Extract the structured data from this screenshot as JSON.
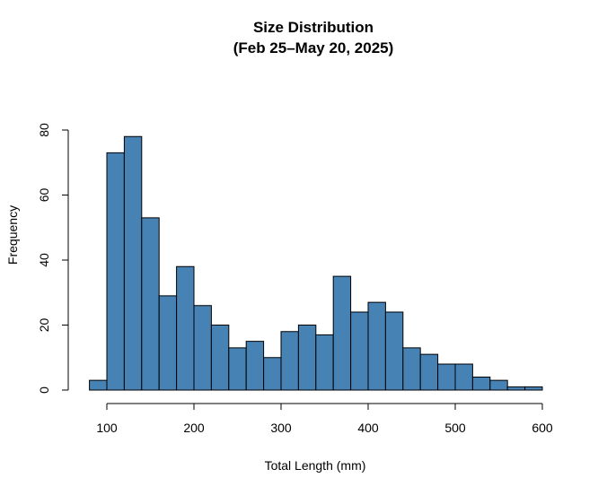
{
  "chart_data": {
    "type": "bar",
    "title": "Size Distribution",
    "subtitle": "(Feb 25–May 20, 2025)",
    "xlabel": "Total Length (mm)",
    "ylabel": "Frequency",
    "bin_start": 80,
    "bin_width": 20,
    "values": [
      3,
      73,
      78,
      53,
      29,
      38,
      26,
      20,
      13,
      15,
      10,
      18,
      20,
      17,
      35,
      24,
      27,
      24,
      13,
      11,
      8,
      8,
      4,
      3,
      1,
      1
    ],
    "xlim": [
      80,
      600
    ],
    "ylim": [
      0,
      80
    ],
    "x_ticks": [
      "100",
      "200",
      "300",
      "400",
      "500",
      "600"
    ],
    "y_ticks": [
      "0",
      "20",
      "40",
      "60",
      "80"
    ],
    "bar_color": "#4682B4",
    "grid": false
  }
}
